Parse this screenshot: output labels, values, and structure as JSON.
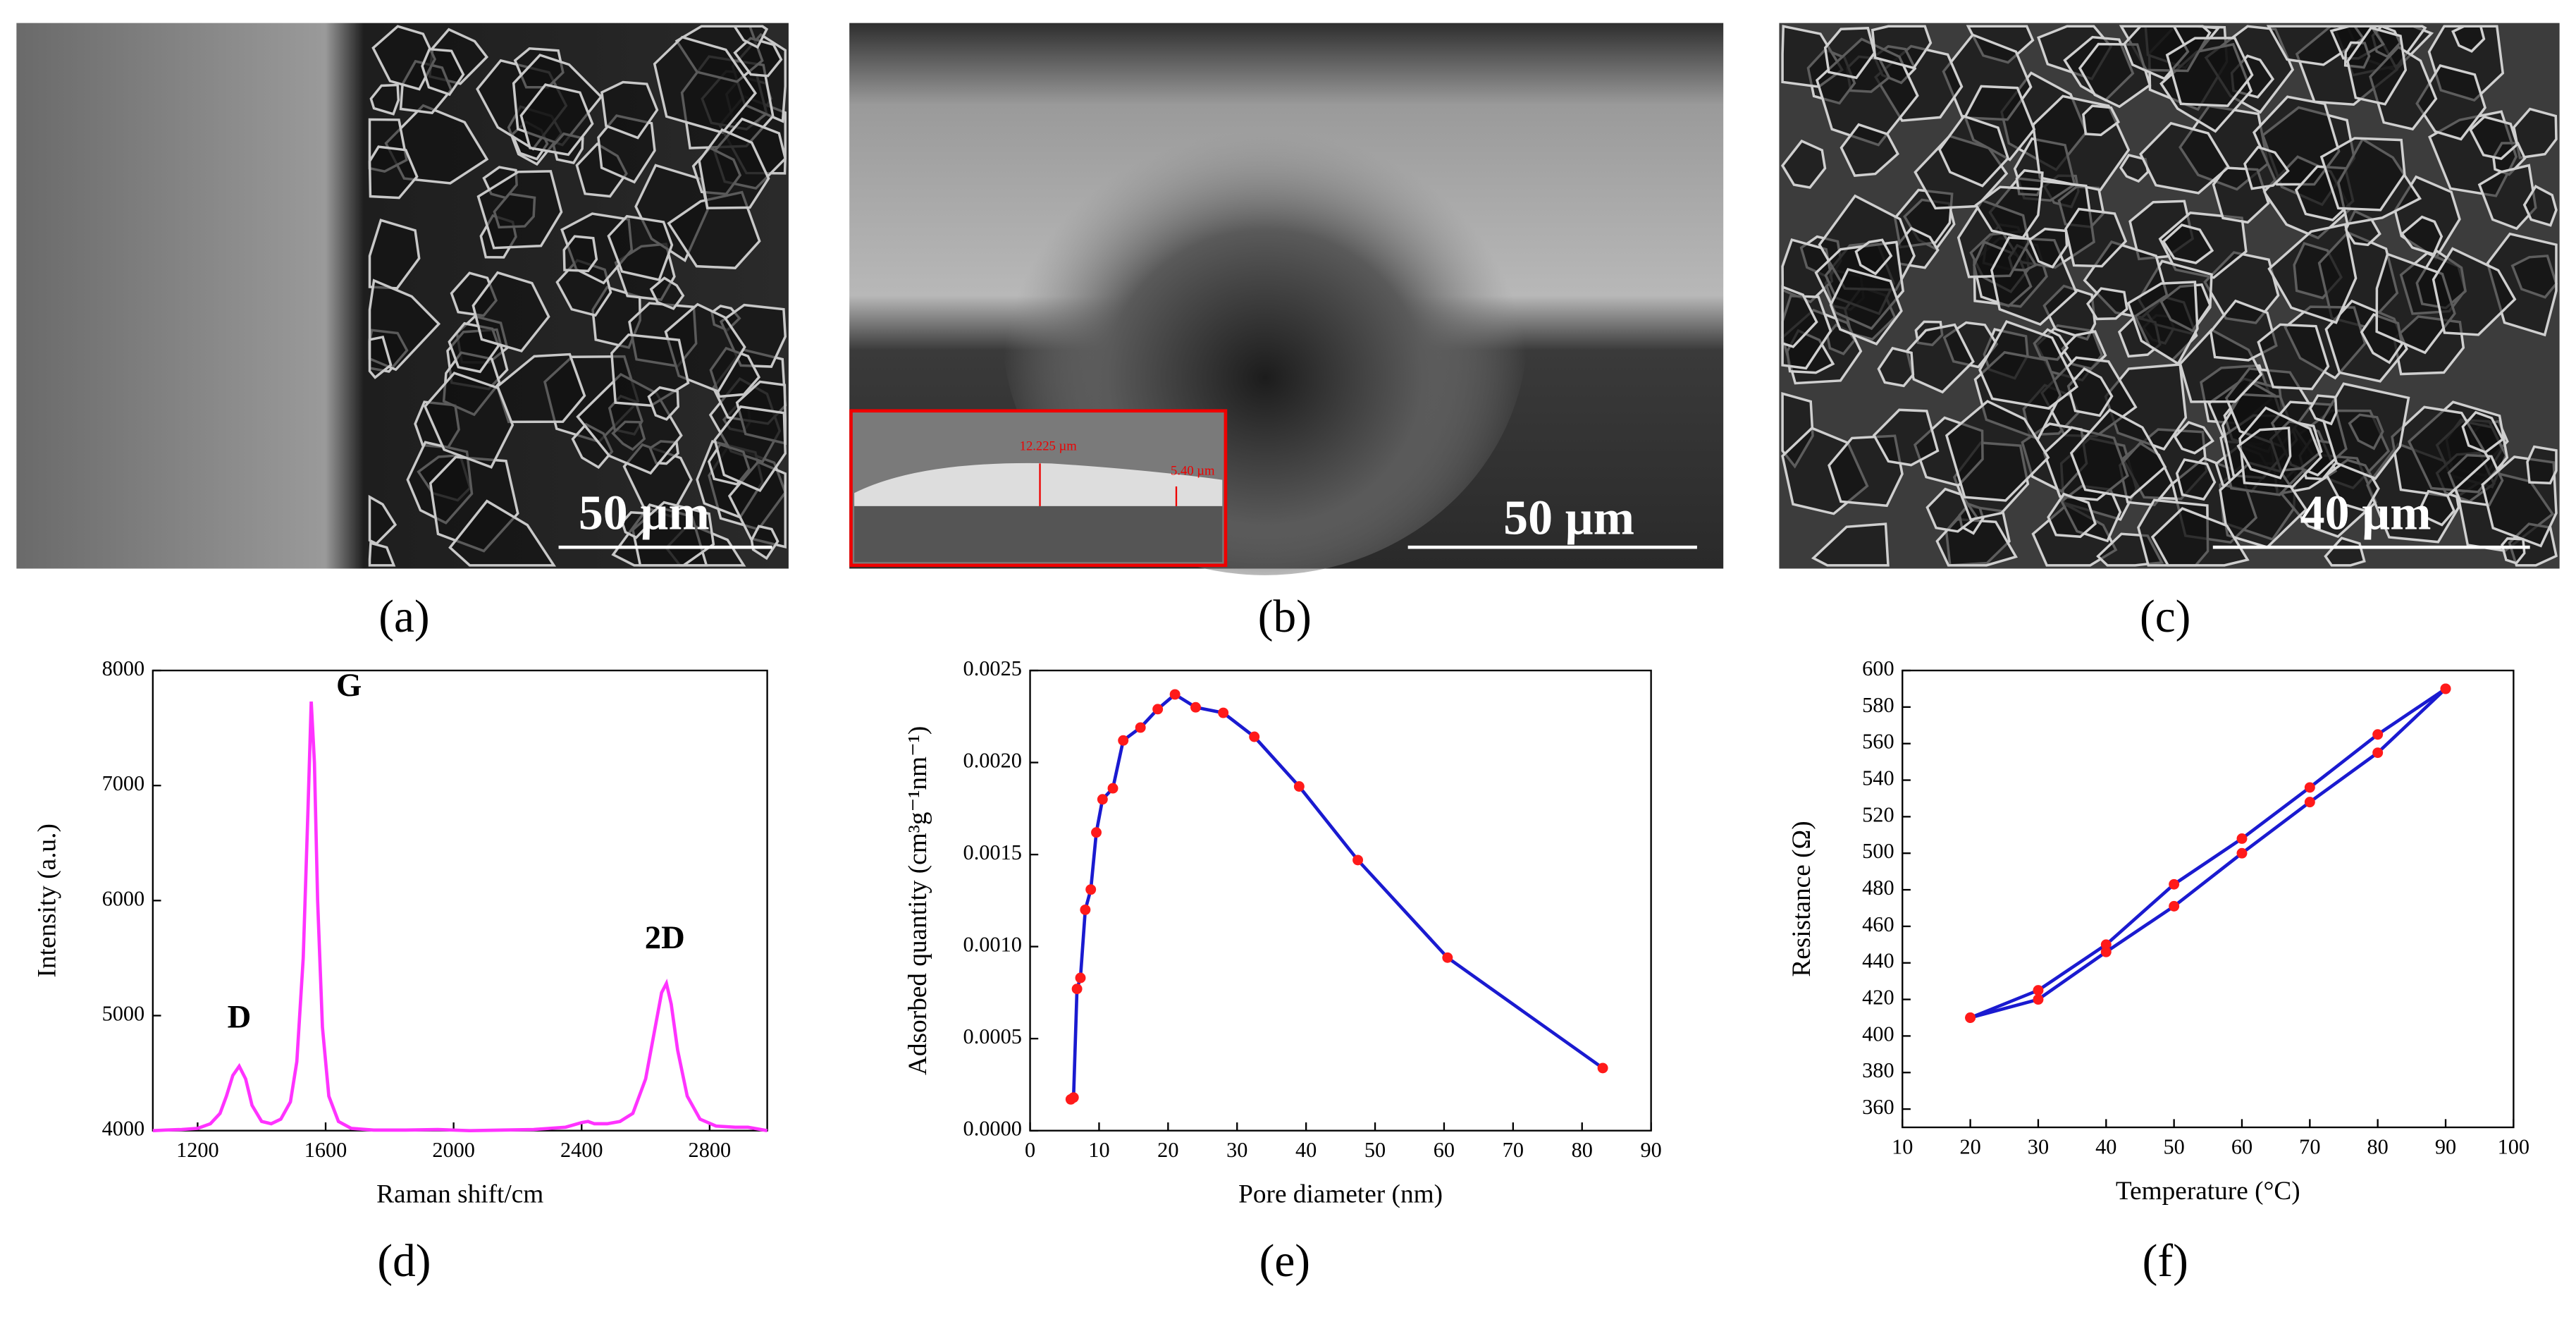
{
  "images": [
    {
      "label": "(a)",
      "scale_bar": "50 µm"
    },
    {
      "label": "(b)",
      "scale_bar": "50 µm",
      "inset": [
        "12.225 µm",
        "5.40 µm"
      ]
    },
    {
      "label": "(c)",
      "scale_bar": "40 µm"
    }
  ],
  "chart_data": [
    {
      "type": "line",
      "label": "(d)",
      "xlabel": "Raman shift/cm",
      "ylabel": "Intensity (a.u.)",
      "annotations": [
        "D",
        "G",
        "2D"
      ],
      "x": [
        1060,
        1100,
        1150,
        1200,
        1240,
        1270,
        1290,
        1310,
        1330,
        1350,
        1370,
        1400,
        1430,
        1460,
        1490,
        1510,
        1530,
        1545,
        1555,
        1565,
        1575,
        1590,
        1610,
        1640,
        1680,
        1750,
        1850,
        1950,
        2050,
        2150,
        2250,
        2350,
        2400,
        2420,
        2440,
        2480,
        2520,
        2560,
        2600,
        2630,
        2650,
        2665,
        2680,
        2700,
        2730,
        2770,
        2820,
        2880,
        2920,
        2960,
        2980
      ],
      "series": [
        {
          "color": "#ff33ff",
          "values": [
            4000,
            4005,
            4010,
            4020,
            4060,
            4150,
            4300,
            4480,
            4560,
            4450,
            4220,
            4080,
            4060,
            4100,
            4250,
            4600,
            5500,
            6800,
            7730,
            7200,
            6000,
            4900,
            4300,
            4080,
            4020,
            4005,
            4005,
            4010,
            4000,
            4005,
            4010,
            4030,
            4070,
            4080,
            4060,
            4060,
            4080,
            4150,
            4450,
            4900,
            5200,
            5280,
            5100,
            4700,
            4300,
            4100,
            4040,
            4030,
            4030,
            4010,
            4000
          ]
        }
      ],
      "xlim": [
        1060,
        2980
      ],
      "xticks": [
        1200,
        1600,
        2000,
        2400,
        2800
      ],
      "ylim": [
        4000,
        8000
      ],
      "yticks": [
        4000,
        5000,
        6000,
        7000,
        8000
      ]
    },
    {
      "type": "line",
      "label": "(e)",
      "xlabel": "Pore diameter (nm)",
      "ylabel": "Adsorbed quantity (cm³g⁻¹nm⁻¹)",
      "x": [
        5.9,
        6.3,
        6.8,
        7.3,
        8,
        8.8,
        9.6,
        10.5,
        12,
        13.5,
        16,
        18.5,
        21,
        24,
        28,
        32.5,
        39,
        47.5,
        60.5,
        83
      ],
      "series": [
        {
          "color": "#1a1ad0",
          "marker_color": "#ff1a1a",
          "values": [
            0.00017,
            0.00018,
            0.00077,
            0.00083,
            0.0012,
            0.00131,
            0.00162,
            0.0018,
            0.00186,
            0.00212,
            0.00219,
            0.00229,
            0.00237,
            0.0023,
            0.00227,
            0.00214,
            0.00187,
            0.00147,
            0.00094,
            0.00034
          ]
        }
      ],
      "xlim": [
        0,
        90
      ],
      "xticks": [
        0,
        10,
        20,
        30,
        40,
        50,
        60,
        70,
        80,
        90
      ],
      "ylim": [
        0,
        0.0025
      ],
      "yticks": [
        {
          "value": 0,
          "label": "0.0000"
        },
        {
          "value": 0.0005,
          "label": "0.0005"
        },
        {
          "value": 0.001,
          "label": "0.0010"
        },
        {
          "value": 0.0015,
          "label": "0.0015"
        },
        {
          "value": 0.002,
          "label": "0.0020"
        },
        {
          "value": 0.0025,
          "label": "0.0025"
        }
      ]
    },
    {
      "type": "line",
      "label": "(f)",
      "xlabel": "Temperature (°C)",
      "ylabel": "Resistance (Ω)",
      "x": [
        20,
        30,
        40,
        50,
        60,
        70,
        80,
        90
      ],
      "series": [
        {
          "color": "#1a1ad0",
          "marker_color": "#ff1a1a",
          "values": [
            410,
            425,
            450,
            483,
            508,
            536,
            565,
            590
          ]
        },
        {
          "color": "#1a1ad0",
          "marker_color": "#ff1a1a",
          "values": [
            410,
            420,
            446,
            471,
            500,
            528,
            555,
            590
          ]
        }
      ],
      "xlim": [
        10,
        100
      ],
      "xticks": [
        10,
        20,
        30,
        40,
        50,
        60,
        70,
        80,
        90,
        100
      ],
      "ylim": [
        350,
        600
      ],
      "yticks": [
        360,
        380,
        400,
        420,
        440,
        460,
        480,
        500,
        520,
        540,
        560,
        580,
        600
      ]
    }
  ]
}
